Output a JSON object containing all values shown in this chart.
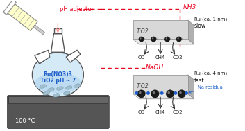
{
  "fig_width": 3.53,
  "fig_height": 1.89,
  "dpi": 100,
  "bg_color": "#ffffff",
  "red_color": "#e8001c",
  "blue_color": "#1f5fcc",
  "black_color": "#1a1a1a",
  "flask_fill": "#d4eaf7",
  "flask_outline": "#555555",
  "heater_fill": "#555555",
  "syringe_fill": "#ffffcc",
  "tio2_face_color": "#d8d8d8",
  "tio2_side_color": "#b0b0b0",
  "tio2_top_color": "#e8e8e8",
  "ru_small_color": "#2a2a2a",
  "ru_large_color": "#1a1a1a",
  "na_color": "#1f5fcc",
  "text_ph_adjuster": "pH adjuster",
  "text_nh3": "NH3",
  "text_naoh": "NaOH",
  "text_flask_line1": "Ru(NO3)3",
  "text_flask_line2": "TiO2 pH ~ 7",
  "text_temp": "100 °C",
  "text_co": "CO",
  "text_ch4": "CH4",
  "text_co2": "CO2",
  "text_slow": "slow",
  "text_fast": "fast",
  "text_tio2": "TiO2",
  "text_ru1": "Ru (ca. 1 nm)",
  "text_ru4": "Ru (ca. 4 nm)",
  "text_na": "Na residual"
}
